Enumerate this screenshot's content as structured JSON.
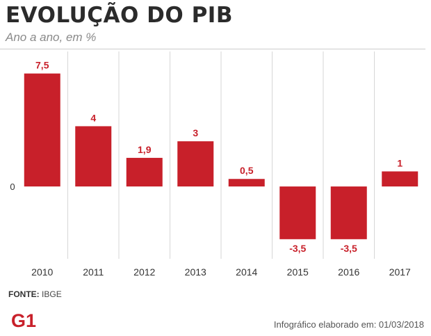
{
  "header": {
    "title": "EVOLUÇÃO DO PIB",
    "subtitle": "Ano a ano, em %"
  },
  "chart_data": {
    "type": "bar",
    "categories": [
      "2010",
      "2011",
      "2012",
      "2013",
      "2014",
      "2015",
      "2016",
      "2017"
    ],
    "values": [
      7.5,
      4,
      1.9,
      3,
      0.5,
      -3.5,
      -3.5,
      1
    ],
    "value_labels": [
      "7,5",
      "4",
      "1,9",
      "3",
      "0,5",
      "-3,5",
      "-3,5",
      "1"
    ],
    "zero_label": "0",
    "ylim": [
      -4.8,
      8.5
    ],
    "grid": "vertical separators",
    "colors": {
      "bar": "#c8202a",
      "label": "#c8202a",
      "grid": "#d6d6d6"
    }
  },
  "footer": {
    "source_label": "FONTE:",
    "source_value": "IBGE",
    "logo_text": "G1",
    "credit": "Infográfico elaborado em: 01/03/2018"
  }
}
